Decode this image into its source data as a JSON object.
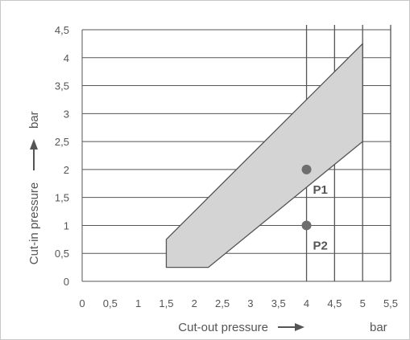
{
  "chart_data": {
    "type": "area",
    "x_label_text": "Cut-out pressure",
    "x_unit": "bar",
    "y_label_text": "Cut-in pressure",
    "y_unit": "bar",
    "xlim": [
      0,
      5.5
    ],
    "ylim": [
      0,
      4.5
    ],
    "x_ticks": [
      "0",
      "0,5",
      "1",
      "1,5",
      "2",
      "2,5",
      "3",
      "3,5",
      "4",
      "4,5",
      "5",
      "5,5"
    ],
    "y_ticks": [
      "0",
      "0,5",
      "1",
      "1,5",
      "2",
      "2,5",
      "3",
      "3,5",
      "4",
      "4,5"
    ],
    "vertical_grid_x": [
      4,
      4.5,
      5,
      5.5
    ],
    "region": {
      "polygon": [
        [
          1.5,
          0.25
        ],
        [
          1.5,
          0.75
        ],
        [
          5,
          4.25
        ],
        [
          5,
          2.5
        ],
        [
          2.25,
          0.25
        ]
      ],
      "fill_color": "#d4d4d4",
      "edge_color": "#555555"
    },
    "points": [
      {
        "label": "P1",
        "x": 4,
        "y": 2
      },
      {
        "label": "P2",
        "x": 4,
        "y": 1
      }
    ],
    "point_color": "#6e6e6e",
    "grid": true
  }
}
